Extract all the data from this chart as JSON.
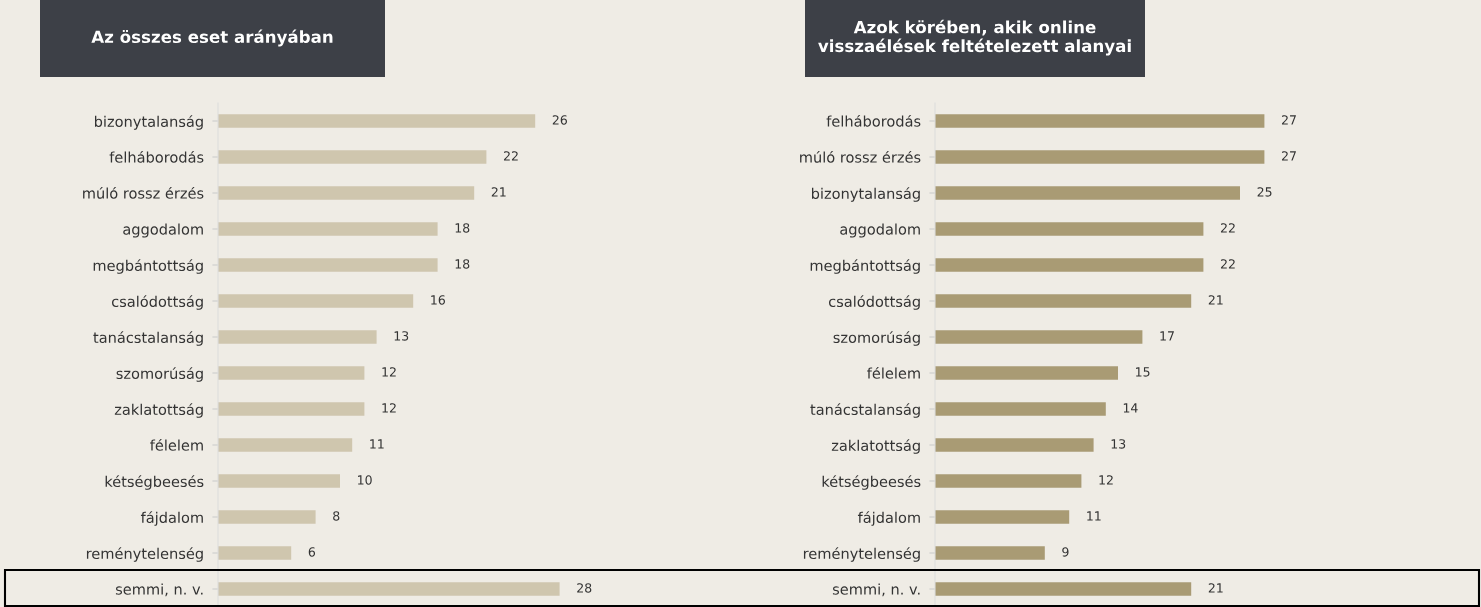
{
  "chart_data": [
    {
      "type": "bar",
      "orientation": "horizontal",
      "title": "Az összes eset arányában",
      "categories": [
        "bizonytalanság",
        "felháborodás",
        "múló rossz érzés",
        "aggodalom",
        "megbántottság",
        "csalódottság",
        "tanácstalanság",
        "szomorúság",
        "zaklatottság",
        "félelem",
        "kétségbeesés",
        "fájdalom",
        "reménytelenség",
        "semmi, n. v."
      ],
      "values": [
        26,
        22,
        21,
        18,
        18,
        16,
        13,
        12,
        12,
        11,
        10,
        8,
        6,
        28
      ],
      "color": "#cfc6ae",
      "data_labels": true,
      "tick_labels": "y"
    },
    {
      "type": "bar",
      "orientation": "horizontal",
      "title": "Azok körében, akik online\nvisszaélések feltételezett alanyai",
      "categories": [
        "felháborodás",
        "múló rossz érzés",
        "bizonytalanság",
        "aggodalom",
        "megbántottság",
        "csalódottság",
        "szomorúság",
        "félelem",
        "tanácstalanság",
        "zaklatottság",
        "kétségbeesés",
        "fájdalom",
        "reménytelenség",
        "semmi, n. v."
      ],
      "values": [
        27,
        27,
        25,
        22,
        22,
        21,
        17,
        15,
        14,
        13,
        12,
        11,
        9,
        21
      ],
      "color": "#a99b74",
      "data_labels": true,
      "tick_labels": "y"
    }
  ]
}
